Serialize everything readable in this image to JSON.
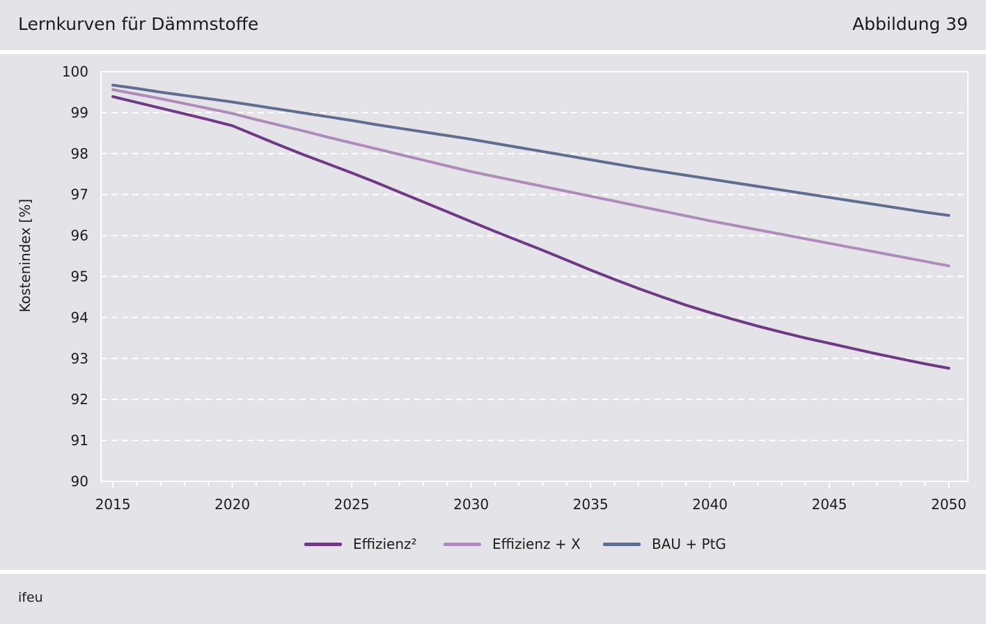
{
  "header": {
    "title": "Lernkurven für Dämmstoffe",
    "figure_number": "Abbildung 39"
  },
  "footer": {
    "source": "ifeu"
  },
  "colors": {
    "background": "#e3e3e8",
    "grid": "#ffffff"
  },
  "chart_data": {
    "type": "line",
    "title": "",
    "xlabel": "",
    "ylabel": "Kostenindex [%]",
    "xlim": [
      2014.5,
      2050.8
    ],
    "ylim": [
      90,
      100
    ],
    "xticks": [
      2015,
      2020,
      2025,
      2030,
      2035,
      2040,
      2045,
      2050
    ],
    "yticks": [
      90,
      91,
      92,
      93,
      94,
      95,
      96,
      97,
      98,
      99,
      100
    ],
    "grid": true,
    "legend_position": "bottom-center",
    "x": [
      2015,
      2016,
      2017,
      2018,
      2019,
      2020,
      2021,
      2022,
      2023,
      2024,
      2025,
      2026,
      2027,
      2028,
      2029,
      2030,
      2031,
      2032,
      2033,
      2034,
      2035,
      2036,
      2037,
      2038,
      2039,
      2040,
      2041,
      2042,
      2043,
      2044,
      2045,
      2046,
      2047,
      2048,
      2049,
      2050
    ],
    "series": [
      {
        "name": "Effizienz²",
        "color": "#6e3a85",
        "values": [
          99.39,
          99.25,
          99.11,
          98.97,
          98.83,
          98.68,
          98.44,
          98.2,
          97.97,
          97.75,
          97.53,
          97.3,
          97.06,
          96.82,
          96.58,
          96.34,
          96.1,
          95.87,
          95.64,
          95.4,
          95.16,
          94.93,
          94.71,
          94.5,
          94.3,
          94.12,
          93.95,
          93.79,
          93.64,
          93.5,
          93.37,
          93.24,
          93.11,
          92.99,
          92.87,
          92.76
        ]
      },
      {
        "name": "Effizienz + X",
        "color": "#ae8bbb",
        "values": [
          99.56,
          99.45,
          99.34,
          99.22,
          99.1,
          98.98,
          98.83,
          98.69,
          98.55,
          98.4,
          98.26,
          98.12,
          97.98,
          97.84,
          97.7,
          97.56,
          97.44,
          97.32,
          97.2,
          97.08,
          96.96,
          96.84,
          96.72,
          96.6,
          96.48,
          96.36,
          96.25,
          96.14,
          96.03,
          95.92,
          95.81,
          95.7,
          95.59,
          95.48,
          95.37,
          95.26
        ]
      },
      {
        "name": "BAU + PtG",
        "color": "#5e6d90",
        "values": [
          99.67,
          99.59,
          99.5,
          99.42,
          99.34,
          99.26,
          99.17,
          99.08,
          98.99,
          98.9,
          98.81,
          98.71,
          98.62,
          98.53,
          98.44,
          98.35,
          98.25,
          98.15,
          98.05,
          97.95,
          97.85,
          97.75,
          97.65,
          97.56,
          97.47,
          97.38,
          97.29,
          97.2,
          97.11,
          97.02,
          96.93,
          96.84,
          96.75,
          96.66,
          96.57,
          96.49
        ]
      }
    ]
  }
}
